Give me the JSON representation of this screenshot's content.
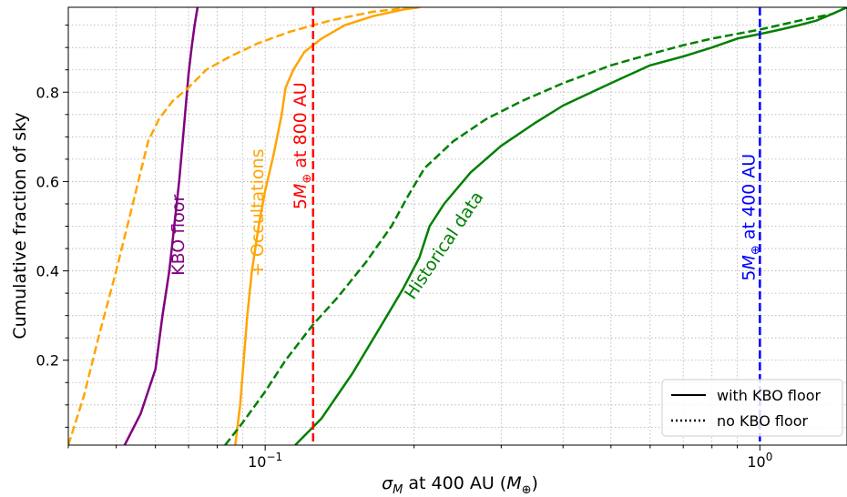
{
  "chart_data": {
    "type": "line",
    "xlabel": "σ_M at 400 AU (M_⊕)",
    "xlabel_parts": {
      "main": "σ",
      "main_sub": "M",
      "mid": " at 400 AU (",
      "unit": "M",
      "unit_sub": "⊕",
      "close": ")"
    },
    "ylabel": "Cumulative fraction of sky",
    "xscale": "log",
    "xlim": [
      0.04,
      1.5
    ],
    "ylim": [
      0.01,
      0.99
    ],
    "grid": true,
    "x_ticks": [
      {
        "value": 0.1,
        "base": "10",
        "exp": "−1"
      },
      {
        "value": 1.0,
        "base": "10",
        "exp": "0"
      }
    ],
    "y_ticks": [
      {
        "value": 0.2,
        "label": "0.2"
      },
      {
        "value": 0.4,
        "label": "0.4"
      },
      {
        "value": 0.6,
        "label": "0.6"
      },
      {
        "value": 0.8,
        "label": "0.8"
      }
    ],
    "series": [
      {
        "color": "#800080",
        "style": "solid",
        "x": [
          0.052,
          0.056,
          0.06,
          0.062,
          0.064,
          0.0655,
          0.067,
          0.068,
          0.069,
          0.07,
          0.071,
          0.072,
          0.073
        ],
        "y": [
          0.01,
          0.08,
          0.18,
          0.3,
          0.4,
          0.5,
          0.6,
          0.68,
          0.76,
          0.84,
          0.9,
          0.95,
          0.99
        ]
      },
      {
        "color": "#FFA500",
        "style": "solid",
        "x": [
          0.087,
          0.089,
          0.0905,
          0.092,
          0.094,
          0.097,
          0.1,
          0.104,
          0.108,
          0.11,
          0.114,
          0.12,
          0.13,
          0.145,
          0.165,
          0.19,
          0.205
        ],
        "y": [
          0.01,
          0.1,
          0.2,
          0.3,
          0.4,
          0.5,
          0.58,
          0.66,
          0.75,
          0.81,
          0.85,
          0.89,
          0.92,
          0.95,
          0.97,
          0.985,
          0.99
        ]
      },
      {
        "color": "#FFA500",
        "style": "dashed",
        "x": [
          0.04,
          0.043,
          0.046,
          0.05,
          0.054,
          0.058,
          0.061,
          0.065,
          0.07,
          0.076,
          0.085,
          0.097,
          0.112,
          0.135,
          0.165,
          0.2
        ],
        "y": [
          0.01,
          0.12,
          0.25,
          0.4,
          0.55,
          0.69,
          0.74,
          0.78,
          0.81,
          0.85,
          0.88,
          0.91,
          0.935,
          0.96,
          0.98,
          0.99
        ]
      },
      {
        "color": "#008000",
        "style": "solid",
        "x": [
          0.115,
          0.13,
          0.15,
          0.17,
          0.19,
          0.205,
          0.215,
          0.23,
          0.26,
          0.3,
          0.35,
          0.4,
          0.5,
          0.6,
          0.7,
          0.8,
          0.9,
          1.0,
          1.1,
          1.2,
          1.3,
          1.4,
          1.5
        ],
        "y": [
          0.01,
          0.07,
          0.17,
          0.27,
          0.36,
          0.43,
          0.5,
          0.55,
          0.62,
          0.68,
          0.73,
          0.77,
          0.82,
          0.86,
          0.88,
          0.9,
          0.92,
          0.93,
          0.94,
          0.95,
          0.96,
          0.975,
          0.99
        ]
      },
      {
        "color": "#008000",
        "style": "dashed",
        "x": [
          0.083,
          0.09,
          0.1,
          0.11,
          0.125,
          0.14,
          0.16,
          0.18,
          0.195,
          0.21,
          0.24,
          0.28,
          0.33,
          0.4,
          0.5,
          0.6,
          0.7,
          0.8,
          1.0,
          1.2,
          1.4,
          1.5
        ],
        "y": [
          0.01,
          0.06,
          0.13,
          0.2,
          0.28,
          0.34,
          0.42,
          0.5,
          0.57,
          0.63,
          0.69,
          0.74,
          0.78,
          0.82,
          0.86,
          0.885,
          0.905,
          0.92,
          0.94,
          0.96,
          0.975,
          0.99
        ]
      }
    ],
    "vlines": [
      {
        "x": 0.125,
        "color": "#ff0000",
        "style": "dashed"
      },
      {
        "x": 1.0,
        "color": "#0000ff",
        "style": "dashed"
      }
    ],
    "annotations": [
      {
        "kind": "plain",
        "text": "KBO floor",
        "x": 0.0685,
        "y": 0.48,
        "rotation": -90,
        "color": "#800080"
      },
      {
        "kind": "plain",
        "text": "+ Occultations",
        "x": 0.099,
        "y": 0.53,
        "rotation": -90,
        "color": "#FFA500"
      },
      {
        "kind": "mass",
        "prefix": "5",
        "mass_sym": "M",
        "mass_sub": "⊕",
        "suffix": " at 800 AU",
        "text": "5M⊕ at 800 AU",
        "x": 0.121,
        "y": 0.68,
        "rotation": -90,
        "color": "#ff0000"
      },
      {
        "kind": "mass",
        "prefix": "5",
        "mass_sym": "M",
        "mass_sub": "⊕",
        "suffix": " at 400 AU",
        "text": "5M⊕ at 400 AU",
        "x": 0.975,
        "y": 0.52,
        "rotation": -90,
        "color": "#0000ff"
      },
      {
        "kind": "plain",
        "text": "Historical data",
        "x": 0.235,
        "y": 0.45,
        "rotation": -56,
        "color": "#008000"
      }
    ],
    "legend": {
      "position": "lower right",
      "entries": [
        {
          "label": "with KBO floor",
          "style": "solid"
        },
        {
          "label": "no KBO floor",
          "style": "dotted"
        }
      ]
    }
  }
}
